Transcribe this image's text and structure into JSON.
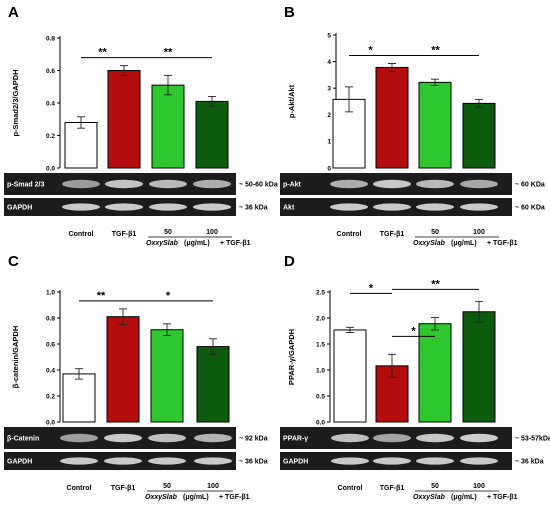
{
  "colors": {
    "control": "#ffffff",
    "tgf": "#b30d0d",
    "oxy50": "#2ec82e",
    "oxy100": "#0d5c0d",
    "axis": "#000000"
  },
  "chart_data": [
    {
      "panel": "A",
      "type": "bar",
      "ylabel": "p-Smad2/3/GAPDH",
      "ylim": [
        0,
        0.8
      ],
      "yticks": [
        "0.0",
        "0.2",
        "0.4",
        "0.6",
        "0.8"
      ],
      "categories": [
        "Control",
        "TGF-β1",
        "50",
        "100"
      ],
      "values": [
        0.28,
        0.6,
        0.51,
        0.41
      ],
      "errors": [
        0.035,
        0.03,
        0.06,
        0.03
      ],
      "sig": [
        {
          "from": 0,
          "to": 1,
          "label": "**"
        },
        {
          "from": 1,
          "to": 3,
          "label": "**"
        }
      ],
      "blots": [
        {
          "label": "p-Smad 2/3",
          "size": "~ 50-60 kDa"
        },
        {
          "label": "GAPDH",
          "size": "~ 36 kDa"
        }
      ]
    },
    {
      "panel": "B",
      "type": "bar",
      "ylabel": "p-Akt/Akt",
      "ylim": [
        0,
        5
      ],
      "yticks": [
        "0",
        "1",
        "2",
        "3",
        "4",
        "5"
      ],
      "categories": [
        "Control",
        "TGF-β1",
        "50",
        "100"
      ],
      "values": [
        2.58,
        3.78,
        3.22,
        2.43
      ],
      "errors": [
        0.47,
        0.15,
        0.12,
        0.15
      ],
      "sig": [
        {
          "from": 0,
          "to": 1,
          "label": "*"
        },
        {
          "from": 1,
          "to": 3,
          "label": "**"
        }
      ],
      "blots": [
        {
          "label": "p-Akt",
          "size": "~ 60 KDa"
        },
        {
          "label": "Akt",
          "size": "~ 60 KDa"
        }
      ]
    },
    {
      "panel": "C",
      "type": "bar",
      "ylabel": "β-catenin/GAPDH",
      "ylim": [
        0,
        1.0
      ],
      "yticks": [
        "0.0",
        "0.2",
        "0.4",
        "0.6",
        "0.8",
        "1.0"
      ],
      "categories": [
        "Control",
        "TGF-β1",
        "50",
        "100"
      ],
      "values": [
        0.37,
        0.81,
        0.71,
        0.58
      ],
      "errors": [
        0.04,
        0.06,
        0.045,
        0.06
      ],
      "sig": [
        {
          "from": 0,
          "to": 1,
          "label": "**"
        },
        {
          "from": 1,
          "to": 3,
          "label": "*"
        }
      ],
      "blots": [
        {
          "label": "β-Catenin",
          "size": "~ 92 kDa"
        },
        {
          "label": "GAPDH",
          "size": "~ 36 kDa"
        }
      ]
    },
    {
      "panel": "D",
      "type": "bar",
      "ylabel": "PPAR-γ/GAPDH",
      "ylim": [
        0,
        2.5
      ],
      "yticks": [
        "0.0",
        "0.5",
        "1.0",
        "1.5",
        "2.0",
        "2.5"
      ],
      "categories": [
        "Control",
        "TGF-β1",
        "50",
        "100"
      ],
      "values": [
        1.77,
        1.08,
        1.89,
        2.12
      ],
      "errors": [
        0.05,
        0.22,
        0.12,
        0.2
      ],
      "sig": [
        {
          "from": 0,
          "to": 1,
          "label": "*"
        },
        {
          "from": 1,
          "to": 2,
          "label": "*"
        },
        {
          "from": 1,
          "to": 3,
          "label": "**"
        }
      ],
      "blots": [
        {
          "label": "PPAR-γ",
          "size": "~ 53-57kDa"
        },
        {
          "label": "GAPDH",
          "size": "~ 36 kDa"
        }
      ]
    }
  ],
  "treatment": {
    "name": "OxxySlab",
    "unit": "(μg/mL)",
    "suffix": "+ TGF-β1"
  }
}
